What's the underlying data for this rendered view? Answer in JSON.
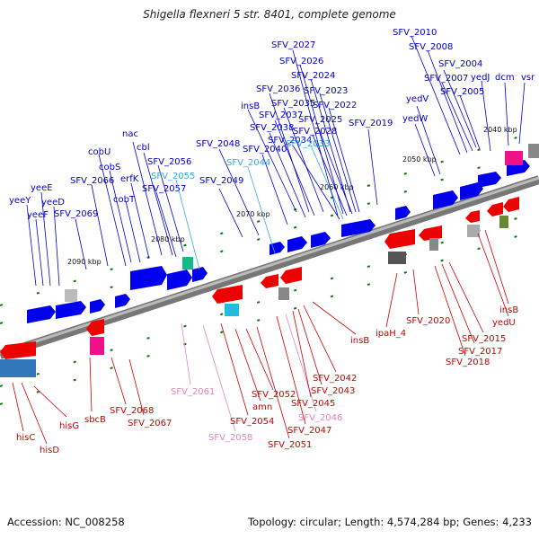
{
  "title": "Shigella flexneri 5 str. 8401, complete genome",
  "footer": {
    "accession": "Accession: NC_008258",
    "summary": "Topology: circular; Length: 4,574,284 bp; Genes: 4,233"
  },
  "colors": {
    "forward_label": "#0000cc",
    "reverse_label": "#cc0000",
    "pseudo_forward_label": "#33aadd",
    "pseudo_reverse_label": "#dd88bb",
    "forward_gene": "#0000ee",
    "reverse_gene": "#ee0000",
    "backbone": "#888888",
    "tick": "#117711",
    "rna_feature": "#ee1188"
  },
  "ruler_ticks": [
    "2040 kbp",
    "2050 kbp",
    "2060 kbp",
    "2070 kbp",
    "2080 kbp",
    "2090 kbp"
  ],
  "forward_labels": [
    "yeeY",
    "yeeE",
    "yeeD",
    "yeeF",
    "SFV_2069",
    "SFV_2066",
    "cobU",
    "cobS",
    "cobT",
    "erfK",
    "nac",
    "cbl",
    "SFV_2056",
    "SFV_2057",
    "SFV_2055",
    "SFV_2049",
    "SFV_2048",
    "SFV_2044",
    "SFV_2040",
    "SFV_2038",
    "SFV_2037",
    "SFV_2036",
    "SFV_2035",
    "insB",
    "SFV_2034",
    "SFV_2033",
    "SFV_2028",
    "SFV_2027",
    "SFV_2026",
    "SFV_2025",
    "SFV_2024",
    "SFV_2023",
    "SFV_2022",
    "SFV_2019",
    "SFV_2010",
    "SFV_2008",
    "SFV_2007",
    "SFV_2005",
    "SFV_2004",
    "yedV",
    "yedW",
    "yedJ",
    "dcm",
    "vsr"
  ],
  "reverse_labels": [
    "hisC",
    "hisD",
    "hisG",
    "sbcB",
    "SFV_2068",
    "SFV_2067",
    "SFV_2061",
    "SFV_2058",
    "SFV_2054",
    "amn",
    "SFV_2052",
    "SFV_2051",
    "SFV_2047",
    "SFV_2046",
    "SFV_2045",
    "SFV_2043",
    "SFV_2042",
    "insB",
    "ipaH_4",
    "SFV_2020",
    "SFV_2018",
    "SFV_2017",
    "SFV_2015",
    "yedU",
    "insB"
  ]
}
